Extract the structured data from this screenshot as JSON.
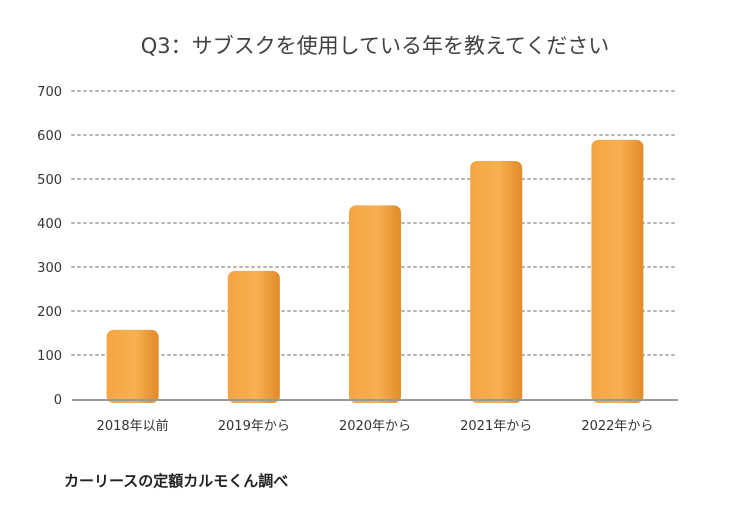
{
  "title": "Q3：サブスクを使用している年を教えてください",
  "source": "カーリースの定額カルモくん調べ",
  "colors": {
    "bar": "#f6a94a",
    "bar_dark": "#e8912d",
    "grid": "#b5b5b5",
    "axis": "#999999"
  },
  "chart_data": {
    "type": "bar",
    "title": "Q3：サブスクを使用している年を教えてください",
    "categories": [
      "2018年以前",
      "2019年から",
      "2020年から",
      "2021年から",
      "2022年から"
    ],
    "values": [
      157,
      291,
      440,
      541,
      589
    ],
    "ylim": [
      0,
      700
    ],
    "yticks": [
      0,
      100,
      200,
      300,
      400,
      500,
      600,
      700
    ],
    "xlabel": "",
    "ylabel": "",
    "grid": true,
    "legend": "none"
  }
}
